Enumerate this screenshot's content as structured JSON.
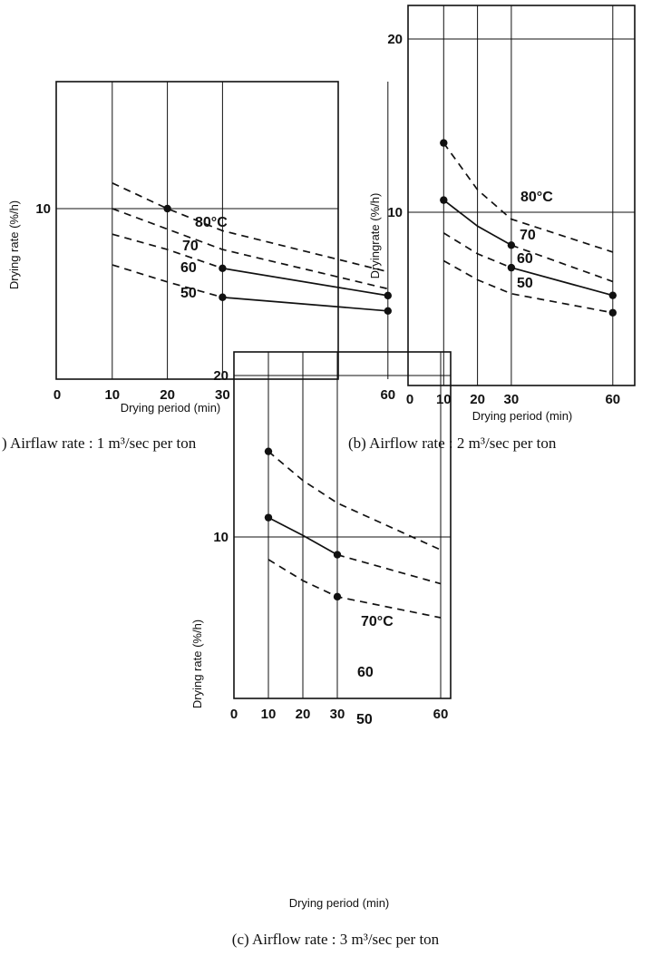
{
  "chart_data": [
    {
      "type": "line",
      "caption": ") Airflaw rate : 1 m³/sec per ton",
      "xlabel": "Drying period (min)",
      "ylabel": "Drying rate (%/h)",
      "xlim": [
        0,
        60
      ],
      "ylim": [
        0,
        14.8
      ],
      "xticks": [
        "0",
        "10",
        "20",
        "30",
        "60"
      ],
      "yticks": [
        "10"
      ],
      "series": [
        {
          "name": "80°C",
          "line": "dashed",
          "x": [
            10,
            20,
            30,
            60
          ],
          "y": [
            11.5,
            10.0,
            8.7,
            6.3
          ]
        },
        {
          "name": "70",
          "line": "dashed",
          "x": [
            10,
            20,
            30,
            60
          ],
          "y": [
            10.0,
            8.8,
            7.6,
            5.3
          ]
        },
        {
          "name": "60",
          "line": "dashed",
          "x": [
            10,
            20,
            30
          ],
          "y": [
            8.5,
            7.6,
            6.5
          ]
        },
        {
          "name": "60",
          "line": "solid",
          "x": [
            30,
            60
          ],
          "y": [
            6.5,
            4.9
          ],
          "marker_x": [
            30,
            60
          ]
        },
        {
          "name": "50",
          "line": "dashed",
          "x": [
            10,
            20,
            30
          ],
          "y": [
            6.7,
            5.7,
            4.8
          ]
        },
        {
          "name": "50",
          "line": "solid",
          "x": [
            30,
            60
          ],
          "y": [
            4.8,
            4.0
          ],
          "marker_x": [
            30,
            60
          ]
        },
        {
          "name": "",
          "line": "none",
          "x": [
            20
          ],
          "y": [
            10.0
          ],
          "marker_x": [
            20
          ]
        }
      ]
    },
    {
      "type": "line",
      "caption": "(b) Airflow rate : 2 m³/sec per ton",
      "xlabel": "Drying period (min)",
      "ylabel": "Dryingrate (%/h)",
      "xlim": [
        0,
        60
      ],
      "ylim": [
        0,
        22
      ],
      "xticks": [
        "0",
        "10",
        "20",
        "30",
        "60"
      ],
      "yticks": [
        "20",
        "10"
      ],
      "series": [
        {
          "name": "80°C",
          "line": "dashed",
          "x": [
            10,
            20,
            30,
            60
          ],
          "y": [
            14.0,
            11.3,
            9.6,
            7.7
          ],
          "marker_x": [
            10
          ]
        },
        {
          "name": "70",
          "line": "solid",
          "x": [
            10,
            20,
            30
          ],
          "y": [
            10.7,
            9.2,
            8.1
          ],
          "marker_x": [
            10,
            30
          ]
        },
        {
          "name": "70",
          "line": "dashed",
          "x": [
            30,
            60
          ],
          "y": [
            8.1,
            6.0
          ]
        },
        {
          "name": "60",
          "line": "dashed",
          "x": [
            10,
            20,
            30
          ],
          "y": [
            8.8,
            7.6,
            6.8
          ]
        },
        {
          "name": "60",
          "line": "solid",
          "x": [
            30,
            60
          ],
          "y": [
            6.8,
            5.2
          ],
          "marker_x": [
            30,
            60
          ]
        },
        {
          "name": "50",
          "line": "dashed",
          "x": [
            10,
            20,
            30,
            60
          ],
          "y": [
            7.2,
            6.1,
            5.3,
            4.2
          ],
          "marker_x": [
            60
          ]
        }
      ]
    },
    {
      "type": "line",
      "caption": "(c) Airflow rate : 3 m³/sec per ton",
      "xlabel": "Drying period (min)",
      "ylabel": "Drying rate (%/h)",
      "xlim": [
        0,
        60
      ],
      "ylim": [
        0,
        22
      ],
      "xticks": [
        "0",
        "10",
        "20",
        "30",
        "60"
      ],
      "yticks": [
        "20",
        "10"
      ],
      "series": [
        {
          "name": "70°C",
          "line": "dashed",
          "x": [
            10,
            20,
            30,
            60
          ],
          "y": [
            15.3,
            13.5,
            12.1,
            9.2
          ],
          "marker_x": [
            10
          ]
        },
        {
          "name": "60",
          "line": "solid",
          "x": [
            10,
            20,
            30
          ],
          "y": [
            11.2,
            10.1,
            8.9
          ],
          "marker_x": [
            10,
            30
          ]
        },
        {
          "name": "60",
          "line": "dashed",
          "x": [
            30,
            60
          ],
          "y": [
            8.9,
            7.1
          ]
        },
        {
          "name": "50",
          "line": "dashed",
          "x": [
            10,
            20,
            30,
            60
          ],
          "y": [
            8.6,
            7.3,
            6.3,
            5.0
          ],
          "marker_x": [
            30
          ]
        }
      ]
    }
  ]
}
